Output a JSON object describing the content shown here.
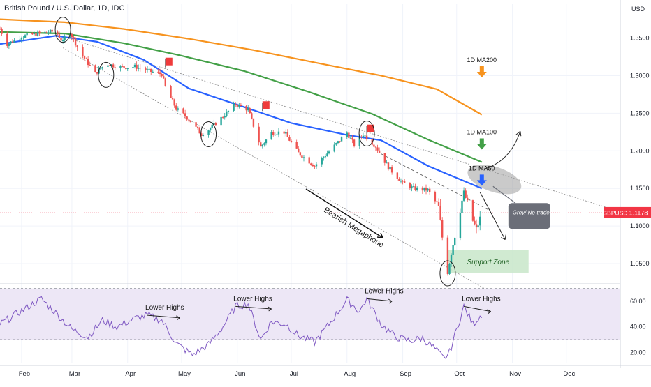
{
  "header": {
    "title": "British Pound / U.S. Dollar, 1D, IDC"
  },
  "price_axis": {
    "unit": "USD",
    "ticks": [
      "1.3500",
      "1.3000",
      "1.2500",
      "1.2000",
      "1.1500",
      "1.1000",
      "1.0500"
    ]
  },
  "rsi_axis": {
    "ticks": [
      "60.00",
      "40.00",
      "20.00"
    ]
  },
  "time_axis": {
    "ticks": [
      "Feb",
      "Mar",
      "Apr",
      "May",
      "Jun",
      "Jul",
      "Aug",
      "Sep",
      "Oct",
      "Nov",
      "Dec"
    ]
  },
  "price_badge": {
    "symbol": "GBPUSD",
    "value": "1.1178"
  },
  "annotations": {
    "ma200": "1D MA200",
    "ma100": "1D MA100",
    "ma50": "1D MA50",
    "megaphone": "Bearish Megaphone",
    "support": "Support Zone",
    "grey_zone": "Grey/ No-trade Zone",
    "lower_highs": "Lower Highs"
  },
  "colors": {
    "ma200": "#f7931e",
    "ma100": "#43a047",
    "ma50": "#2962ff",
    "up": "#26a69a",
    "down": "#ef5350",
    "rsi_line": "#7e57c2",
    "rsi_band": "#ede7f6",
    "flag": "#ef3b3b",
    "arrow_orange": "#f7931e",
    "arrow_green": "#43a047",
    "arrow_blue": "#2962ff",
    "support": "#c8e6c9",
    "grey_zone": "#9e9e9e",
    "tooltip": "#6b6e78",
    "badge": "#f23645"
  },
  "chart_data": {
    "type": "candlestick",
    "symbol": "GBPUSD",
    "timeframe": "1D",
    "ylim": [
      1.025,
      1.395
    ],
    "rsi_ylim": [
      12,
      72
    ],
    "rsi_levels": [
      70,
      50,
      30
    ],
    "current_price": 1.1178,
    "x_start": "2022-01-20",
    "x_end": "2022-12-31",
    "price_path": [
      [
        "2022-01-20",
        1.362
      ],
      [
        "2022-01-24",
        1.342
      ],
      [
        "2022-02-01",
        1.352
      ],
      [
        "2022-02-10",
        1.356
      ],
      [
        "2022-02-20",
        1.359
      ],
      [
        "2022-02-24",
        1.344
      ],
      [
        "2022-02-27",
        1.363
      ],
      [
        "2022-03-05",
        1.333
      ],
      [
        "2022-03-14",
        1.303
      ],
      [
        "2022-03-20",
        1.316
      ],
      [
        "2022-03-28",
        1.311
      ],
      [
        "2022-04-05",
        1.312
      ],
      [
        "2022-04-13",
        1.306
      ],
      [
        "2022-04-20",
        1.302
      ],
      [
        "2022-04-22",
        1.285
      ],
      [
        "2022-04-28",
        1.256
      ],
      [
        "2022-05-05",
        1.242
      ],
      [
        "2022-05-12",
        1.222
      ],
      [
        "2022-05-16",
        1.228
      ],
      [
        "2022-05-25",
        1.248
      ],
      [
        "2022-05-31",
        1.262
      ],
      [
        "2022-06-07",
        1.255
      ],
      [
        "2022-06-14",
        1.205
      ],
      [
        "2022-06-20",
        1.224
      ],
      [
        "2022-06-27",
        1.225
      ],
      [
        "2022-07-05",
        1.197
      ],
      [
        "2022-07-14",
        1.18
      ],
      [
        "2022-07-22",
        1.199
      ],
      [
        "2022-08-01",
        1.224
      ],
      [
        "2022-08-05",
        1.208
      ],
      [
        "2022-08-10",
        1.222
      ],
      [
        "2022-08-17",
        1.206
      ],
      [
        "2022-08-24",
        1.178
      ],
      [
        "2022-09-01",
        1.157
      ],
      [
        "2022-09-07",
        1.15
      ],
      [
        "2022-09-15",
        1.148
      ],
      [
        "2022-09-21",
        1.125
      ],
      [
        "2022-09-23",
        1.085
      ],
      [
        "2022-09-26",
        1.04
      ],
      [
        "2022-09-28",
        1.065
      ],
      [
        "2022-10-05",
        1.145
      ],
      [
        "2022-10-10",
        1.107
      ],
      [
        "2022-10-12",
        1.095
      ],
      [
        "2022-10-15",
        1.117
      ]
    ],
    "ma_series": [
      {
        "name": "1D MA200",
        "color": "#f7931e",
        "points": [
          [
            "2022-01-20",
            1.375
          ],
          [
            "2022-02-25",
            1.371
          ],
          [
            "2022-03-30",
            1.362
          ],
          [
            "2022-05-05",
            1.349
          ],
          [
            "2022-06-10",
            1.334
          ],
          [
            "2022-07-15",
            1.317
          ],
          [
            "2022-08-20",
            1.3
          ],
          [
            "2022-09-20",
            1.282
          ],
          [
            "2022-10-15",
            1.248
          ]
        ]
      },
      {
        "name": "1D MA100",
        "color": "#43a047",
        "points": [
          [
            "2022-01-20",
            1.358
          ],
          [
            "2022-02-25",
            1.356
          ],
          [
            "2022-03-30",
            1.343
          ],
          [
            "2022-04-30",
            1.327
          ],
          [
            "2022-06-05",
            1.306
          ],
          [
            "2022-07-10",
            1.279
          ],
          [
            "2022-08-15",
            1.249
          ],
          [
            "2022-09-15",
            1.215
          ],
          [
            "2022-10-15",
            1.185
          ]
        ]
      },
      {
        "name": "1D MA50",
        "color": "#2962ff",
        "points": [
          [
            "2022-01-20",
            1.342
          ],
          [
            "2022-02-20",
            1.353
          ],
          [
            "2022-03-15",
            1.345
          ],
          [
            "2022-04-10",
            1.321
          ],
          [
            "2022-05-05",
            1.283
          ],
          [
            "2022-06-05",
            1.258
          ],
          [
            "2022-07-01",
            1.237
          ],
          [
            "2022-08-01",
            1.221
          ],
          [
            "2022-08-20",
            1.214
          ],
          [
            "2022-09-15",
            1.18
          ],
          [
            "2022-10-15",
            1.15
          ]
        ]
      }
    ],
    "rsi_path": [
      [
        "2022-01-20",
        42
      ],
      [
        "2022-02-05",
        56
      ],
      [
        "2022-02-12",
        62
      ],
      [
        "2022-02-20",
        51
      ],
      [
        "2022-03-01",
        38
      ],
      [
        "2022-03-10",
        32
      ],
      [
        "2022-03-18",
        45
      ],
      [
        "2022-03-26",
        40
      ],
      [
        "2022-04-06",
        47
      ],
      [
        "2022-04-12",
        49
      ],
      [
        "2022-04-20",
        45
      ],
      [
        "2022-04-28",
        27
      ],
      [
        "2022-05-07",
        18
      ],
      [
        "2022-05-16",
        26
      ],
      [
        "2022-05-24",
        40
      ],
      [
        "2022-05-31",
        56
      ],
      [
        "2022-06-07",
        58
      ],
      [
        "2022-06-14",
        30
      ],
      [
        "2022-06-20",
        44
      ],
      [
        "2022-06-28",
        42
      ],
      [
        "2022-07-05",
        33
      ],
      [
        "2022-07-14",
        28
      ],
      [
        "2022-07-22",
        42
      ],
      [
        "2022-08-01",
        61
      ],
      [
        "2022-08-08",
        52
      ],
      [
        "2022-08-12",
        62
      ],
      [
        "2022-08-20",
        42
      ],
      [
        "2022-08-28",
        32
      ],
      [
        "2022-09-05",
        29
      ],
      [
        "2022-09-12",
        31
      ],
      [
        "2022-09-18",
        24
      ],
      [
        "2022-09-24",
        15
      ],
      [
        "2022-09-27",
        20
      ],
      [
        "2022-10-05",
        56
      ],
      [
        "2022-10-10",
        42
      ],
      [
        "2022-10-15",
        50
      ]
    ],
    "trendlines": [
      {
        "name": "megaphone-upper",
        "from": [
          "2022-02-24",
          1.352
        ],
        "to": [
          "2022-12-31",
          1.119
        ]
      },
      {
        "name": "megaphone-lower",
        "from": [
          "2022-02-24",
          1.337
        ],
        "to": [
          "2022-10-20",
          1.012
        ]
      },
      {
        "name": "lower-highs-line",
        "from": [
          "2022-08-20",
          1.196
        ],
        "to": [
          "2022-10-20",
          1.12
        ]
      }
    ],
    "support_zone": {
      "from": "2022-09-26",
      "to": "2022-11-10",
      "y_low": 1.038,
      "y_high": 1.068
    },
    "red_flags": [
      [
        "2022-04-22",
        1.322
      ],
      [
        "2022-06-15",
        1.264
      ],
      [
        "2022-08-12",
        1.233
      ]
    ],
    "circles": [
      [
        "2022-02-24",
        1.361
      ],
      [
        "2022-03-20",
        1.301
      ],
      [
        "2022-05-16",
        1.222
      ],
      [
        "2022-08-12",
        1.223
      ],
      [
        "2022-09-26",
        1.037
      ]
    ],
    "lower_high_markers": [
      {
        "from": [
          "2022-04-12",
          49
        ],
        "to": [
          "2022-04-30",
          47
        ]
      },
      {
        "from": [
          "2022-05-31",
          56
        ],
        "to": [
          "2022-06-20",
          54
        ]
      },
      {
        "from": [
          "2022-08-12",
          62
        ],
        "to": [
          "2022-08-26",
          60
        ]
      },
      {
        "from": [
          "2022-10-05",
          56
        ],
        "to": [
          "2022-10-20",
          52
        ]
      }
    ]
  }
}
